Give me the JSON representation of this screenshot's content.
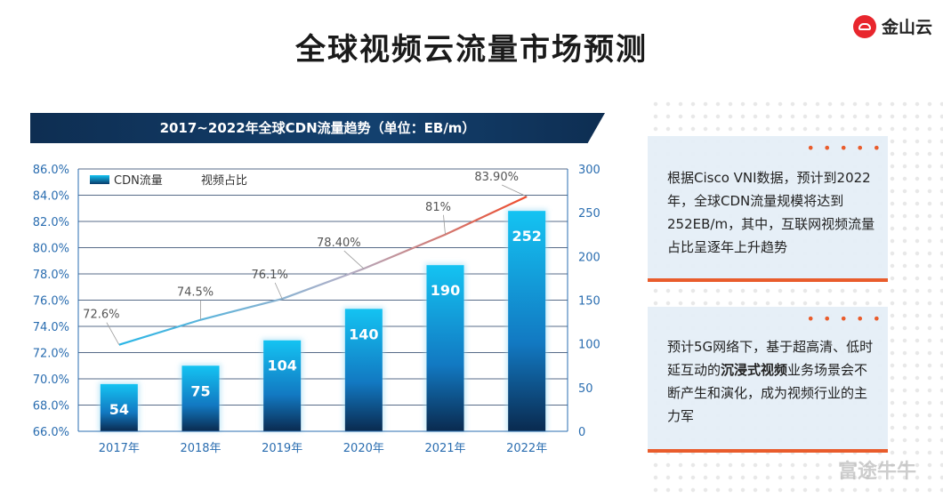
{
  "page": {
    "title": "全球视频云流量市场预测",
    "logo_text": "金山云",
    "watermark": "富途牛牛"
  },
  "chart_data": {
    "type": "bar",
    "title": "2017~2022年全球CDN流量趋势（单位：EB/m）",
    "categories": [
      "2017年",
      "2018年",
      "2019年",
      "2020年",
      "2021年",
      "2022年"
    ],
    "series": [
      {
        "name": "CDN流量",
        "type": "bar",
        "axis": "right",
        "values": [
          54,
          75,
          104,
          140,
          190,
          252
        ],
        "labels": [
          "54",
          "75",
          "104",
          "140",
          "190",
          "252"
        ]
      },
      {
        "name": "视频占比",
        "type": "line",
        "axis": "left",
        "values": [
          72.6,
          74.5,
          76.1,
          78.4,
          81,
          83.9
        ],
        "labels": [
          "72.6%",
          "74.5%",
          "76.1%",
          "78.40%",
          "81%",
          "83.90%"
        ]
      }
    ],
    "y_left": {
      "min": 66,
      "max": 86,
      "ticks": [
        "66.0%",
        "68.0%",
        "70.0%",
        "72.0%",
        "74.0%",
        "76.0%",
        "78.0%",
        "80.0%",
        "82.0%",
        "84.0%",
        "86.0%"
      ]
    },
    "y_right": {
      "min": 0,
      "max": 300,
      "ticks": [
        "0",
        "50",
        "100",
        "150",
        "200",
        "250",
        "300"
      ]
    },
    "legend": "top-left",
    "grid": true,
    "colors": {
      "bar_top": "#13c0ef",
      "bar_bottom": "#0a2a4f",
      "line_start": "#29b6e6",
      "line_mid": "#b0b0c8",
      "line_end": "#ef4a2a",
      "axis": "#2a6db0"
    }
  },
  "cards": [
    {
      "text": "根据Cisco VNI数据，预计到2022年，全球CDN流量规模将达到252EB/m，其中，互联网视频流量占比呈逐年上升趋势"
    },
    {
      "pre": "预计5G网络下，基于超高清、低时延互动的",
      "bold": "沉浸式视频",
      "post": "业务场景会不断产生和演化，成为视频行业的主力军"
    }
  ]
}
